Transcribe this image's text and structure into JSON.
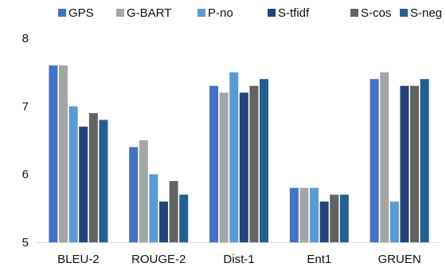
{
  "chart_data": {
    "type": "bar",
    "categories": [
      "BLEU-2",
      "ROUGE-2",
      "Dist-1",
      "Ent1",
      "GRUEN"
    ],
    "series": [
      {
        "name": "GPS",
        "color": "#4472C4",
        "values": [
          7.6,
          6.4,
          7.3,
          5.8,
          7.4
        ]
      },
      {
        "name": "G-BART",
        "color": "#A5A5A5",
        "values": [
          7.6,
          6.5,
          7.2,
          5.8,
          7.5
        ]
      },
      {
        "name": "P-no",
        "color": "#5B9BD5",
        "values": [
          7.0,
          6.0,
          7.5,
          5.8,
          5.6
        ]
      },
      {
        "name": "S-tfidf",
        "color": "#264478",
        "values": [
          6.7,
          5.6,
          7.2,
          5.6,
          7.3
        ]
      },
      {
        "name": "S-cos",
        "color": "#636363",
        "values": [
          6.9,
          5.9,
          7.3,
          5.7,
          7.3
        ]
      },
      {
        "name": "S-neg",
        "color": "#255E91",
        "values": [
          6.8,
          5.7,
          7.4,
          5.7,
          7.4
        ]
      }
    ],
    "ylim": [
      5,
      8
    ],
    "yticks": [
      5,
      6,
      7,
      8
    ],
    "grid": false,
    "legend_position": "top",
    "title": "",
    "xlabel": "",
    "ylabel": ""
  }
}
